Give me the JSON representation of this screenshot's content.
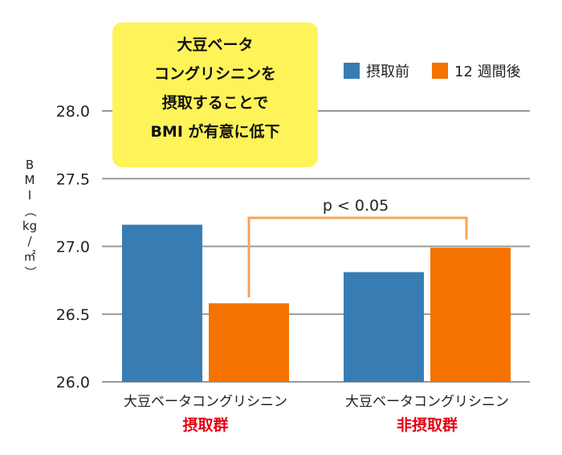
{
  "chart_data": {
    "type": "bar",
    "categories": [
      {
        "line1": "大豆ベータコングリシニン",
        "line2": "摂取群"
      },
      {
        "line1": "大豆ベータコングリシニン",
        "line2": "非摂取群"
      }
    ],
    "series": [
      {
        "name": "摂取前",
        "color": "#377db4",
        "values": [
          27.16,
          26.81
        ]
      },
      {
        "name": "12 週間後",
        "color": "#f57200",
        "values": [
          26.58,
          26.99
        ]
      }
    ],
    "ylabel_chars": [
      "B",
      "M",
      "I",
      "（",
      "kg",
      "/",
      "㎡",
      "）"
    ],
    "ylim": [
      26.0,
      28.0
    ],
    "yticks": [
      "26.0",
      "26.5",
      "27.0",
      "27.5",
      "28.0"
    ],
    "ytick_values": [
      26.0,
      26.5,
      27.0,
      27.5,
      28.0
    ],
    "grid": true,
    "legend_position": "top-right",
    "annotation": "p < 0.05",
    "callout_lines": [
      "大豆ベータ",
      "コングリシニンを",
      "摂取することで",
      "BMI が有意に低下"
    ],
    "group_label_color": "#e60012"
  }
}
